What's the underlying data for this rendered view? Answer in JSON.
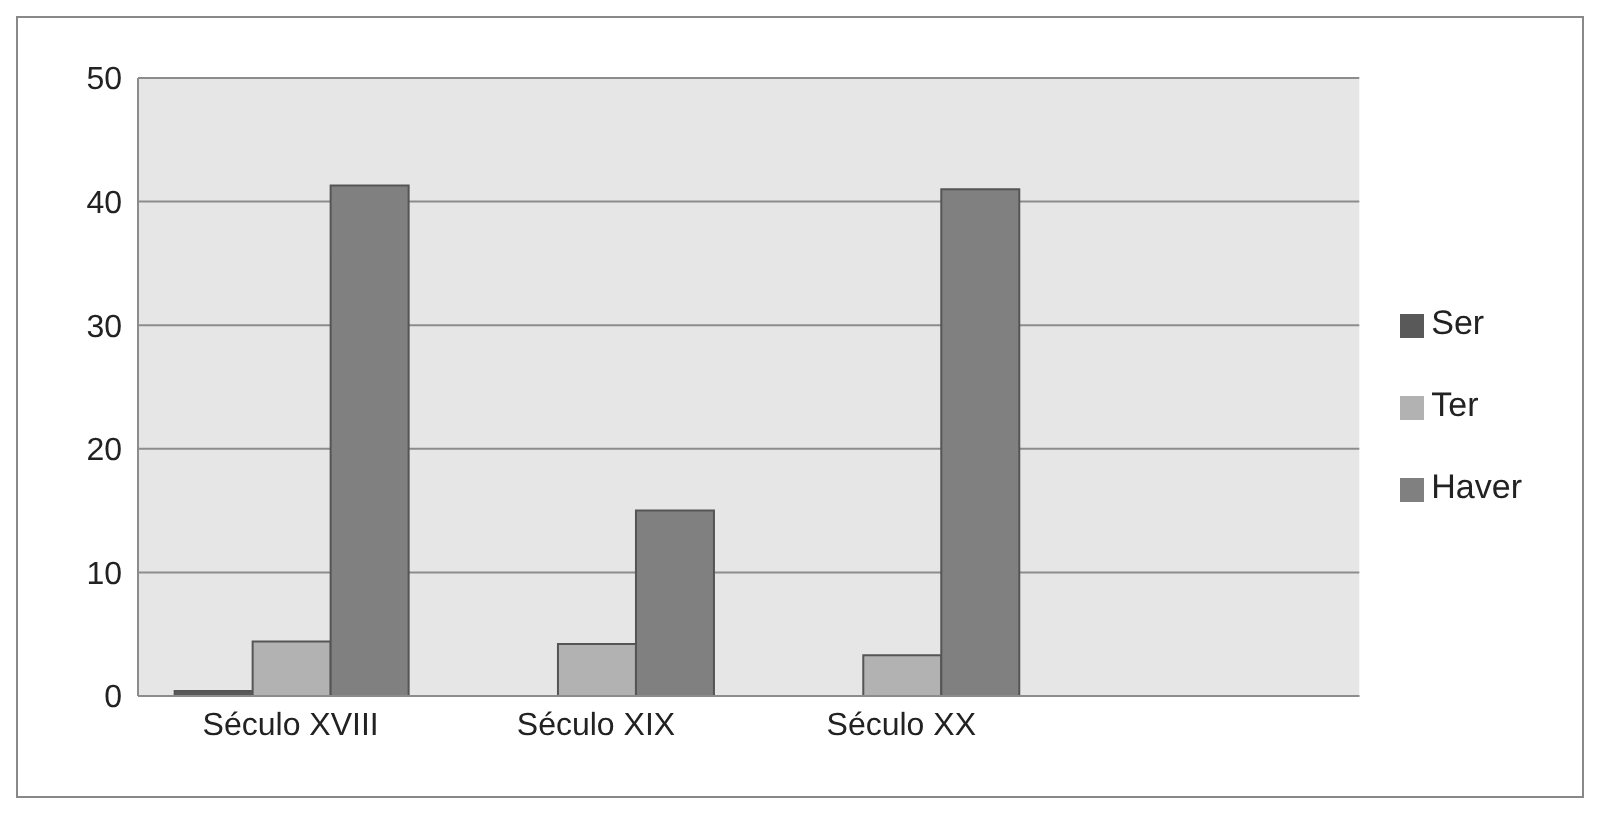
{
  "chart_data": {
    "type": "bar",
    "categories": [
      "Século XVIII",
      "Século XIX",
      "Século XX",
      null
    ],
    "series": [
      {
        "name": "Ser",
        "color": "#595959",
        "values": [
          0.4,
          null,
          null,
          null
        ]
      },
      {
        "name": "Ter",
        "color": "#b2b2b2",
        "values": [
          4.4,
          4.2,
          3.3,
          null
        ]
      },
      {
        "name": "Haver",
        "color": "#808080",
        "values": [
          41.3,
          15,
          41,
          null
        ]
      }
    ],
    "ylim": [
      0,
      50
    ],
    "yticks": [
      0,
      10,
      20,
      30,
      40,
      50
    ],
    "grid": "y",
    "legend": "right"
  }
}
